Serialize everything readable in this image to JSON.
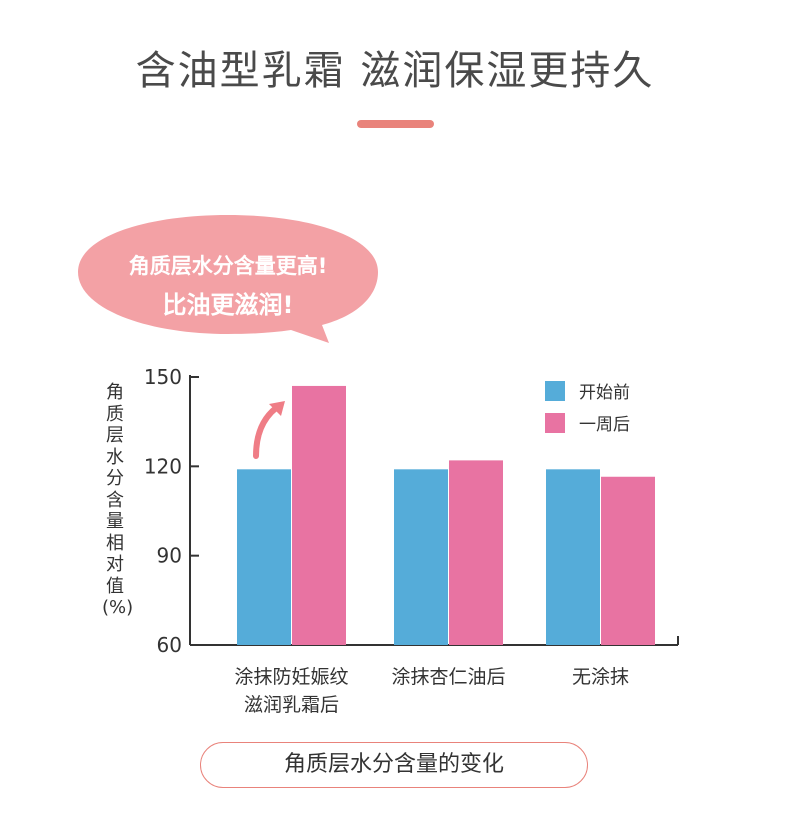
{
  "title": "含油型乳霜 滋润保湿更持久",
  "bubble": {
    "line1": "角质层水分含量更高!",
    "line2": "比油更滋润!"
  },
  "caption": "角质层水分含量的变化",
  "colors": {
    "before": "#55acd9",
    "after": "#e873a2",
    "accent": "#e9837b",
    "bubble": "#f3a1a5"
  },
  "chart_data": {
    "type": "bar",
    "ylabel": "角质层水分含量相对值(%)",
    "ylim": [
      60,
      150
    ],
    "yticks": [
      60,
      90,
      120,
      150
    ],
    "categories": [
      [
        "涂抹防妊娠纹",
        "滋润乳霜后"
      ],
      [
        "涂抹杏仁油后"
      ],
      [
        "无涂抹"
      ]
    ],
    "series": [
      {
        "name": "开始前",
        "values": [
          119,
          119,
          119
        ]
      },
      {
        "name": "一周后",
        "values": [
          147,
          122,
          116.5
        ]
      }
    ],
    "legend": "top-right",
    "annotation": "arrow from first 开始前 bar to first 一周后 bar"
  }
}
